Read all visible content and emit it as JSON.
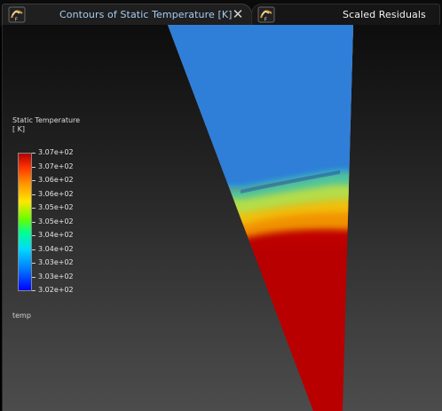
{
  "tabs": [
    {
      "label": "Contours of Static Temperature [K]",
      "icon": "fluent-icon",
      "active": true
    },
    {
      "label": "Scaled Residuals",
      "icon": "fluent-icon",
      "active": false
    }
  ],
  "tab_close_glyph": "✕",
  "legend": {
    "title": "Static Temperature",
    "unit": "[ K]",
    "ticks": [
      "3.07e+02",
      "3.07e+02",
      "3.06e+02",
      "3.06e+02",
      "3.05e+02",
      "3.05e+02",
      "3.04e+02",
      "3.04e+02",
      "3.03e+02",
      "3.03e+02",
      "3.02e+02"
    ],
    "caption": "temp",
    "colormap": [
      "#b00000",
      "#ff3300",
      "#ff9500",
      "#ffe600",
      "#66ff00",
      "#00ff93",
      "#00d9ff",
      "#0077ff",
      "#0000ff"
    ]
  },
  "colors": {
    "tab_active_text": "#a6cdf2",
    "tab_text": "#f2f2f2",
    "cold_region": "#2f7fd8",
    "hot_region": "#b50000",
    "legend_text": "#dcdcdc"
  }
}
